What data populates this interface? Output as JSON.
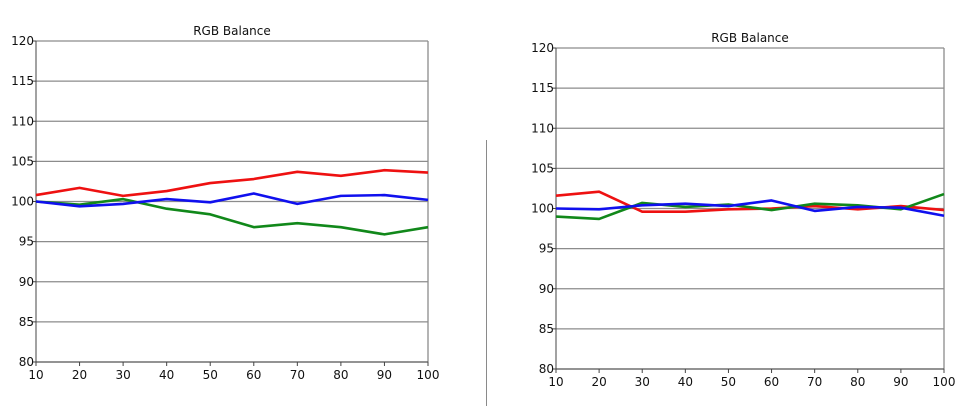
{
  "chart_data": [
    {
      "type": "line",
      "title": "RGB Balance",
      "x": [
        10,
        20,
        30,
        40,
        50,
        60,
        70,
        80,
        90,
        100
      ],
      "ylim": [
        80,
        120
      ],
      "yticks": [
        80,
        85,
        90,
        95,
        100,
        105,
        110,
        115,
        120
      ],
      "grid": true,
      "series": [
        {
          "color": "#ee1111",
          "values": [
            100.8,
            101.7,
            100.7,
            101.3,
            102.3,
            102.8,
            103.7,
            103.2,
            103.9,
            103.6
          ]
        },
        {
          "color": "#11881a",
          "values": [
            100.0,
            99.6,
            100.3,
            99.1,
            98.4,
            96.8,
            97.3,
            96.8,
            95.9,
            96.8
          ]
        },
        {
          "color": "#1010ee",
          "values": [
            100.0,
            99.4,
            99.7,
            100.3,
            99.9,
            101.0,
            99.7,
            100.7,
            100.8,
            100.2
          ]
        }
      ]
    },
    {
      "type": "line",
      "title": "RGB Balance",
      "x": [
        10,
        20,
        30,
        40,
        50,
        60,
        70,
        80,
        90,
        100
      ],
      "ylim": [
        80,
        120
      ],
      "yticks": [
        80,
        85,
        90,
        95,
        100,
        105,
        110,
        115,
        120
      ],
      "grid": true,
      "series": [
        {
          "color": "#ee1111",
          "values": [
            101.6,
            102.1,
            99.6,
            99.6,
            99.9,
            100.0,
            100.3,
            99.9,
            100.3,
            99.8
          ]
        },
        {
          "color": "#11881a",
          "values": [
            99.0,
            98.7,
            100.7,
            100.2,
            100.5,
            99.8,
            100.6,
            100.4,
            99.9,
            101.8
          ]
        },
        {
          "color": "#1010ee",
          "values": [
            100.0,
            99.9,
            100.4,
            100.6,
            100.3,
            101.0,
            99.7,
            100.2,
            100.1,
            99.1
          ]
        }
      ]
    }
  ]
}
